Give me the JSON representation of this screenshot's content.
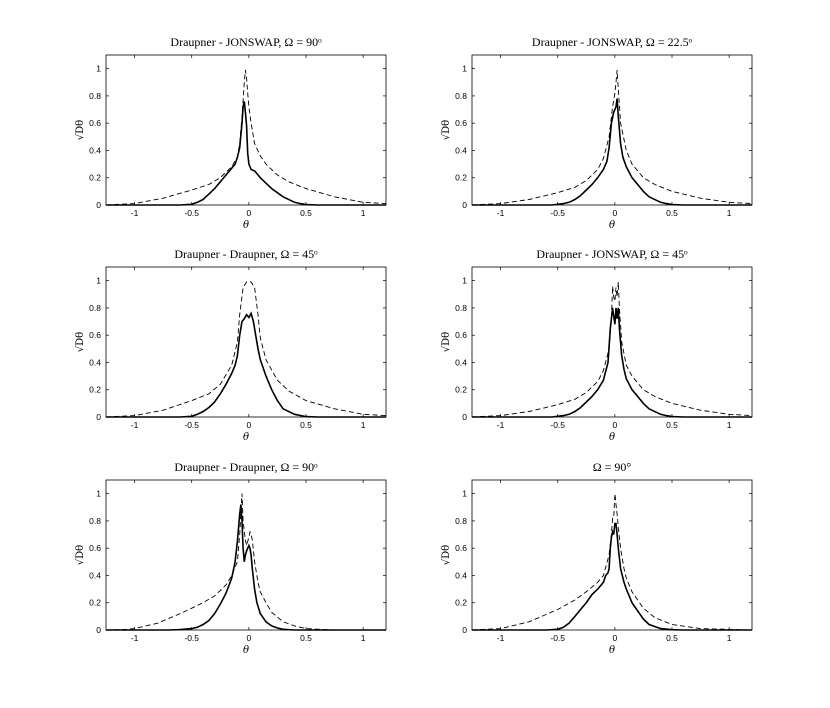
{
  "chart_data": [
    {
      "type": "line",
      "title": "Draupner - JONSWAP, Ω = 90ᵒ",
      "xlabel": "θ",
      "ylabel": "√Dθ",
      "xlim": [
        -1.25,
        1.2
      ],
      "ylim": [
        0,
        1.1
      ],
      "xticks": [
        "-1",
        "-0.5",
        "0",
        "0.5",
        "1"
      ],
      "yticks": [
        "0",
        "0.2",
        "0.4",
        "0.6",
        "0.8",
        "1"
      ],
      "series": [
        {
          "style": "solid",
          "x": [
            -1.25,
            -0.6,
            -0.5,
            -0.45,
            -0.4,
            -0.35,
            -0.3,
            -0.25,
            -0.2,
            -0.15,
            -0.12,
            -0.1,
            -0.08,
            -0.06,
            -0.05,
            -0.04,
            -0.03,
            -0.02,
            -0.01,
            0,
            0.02,
            0.05,
            0.1,
            0.15,
            0.2,
            0.3,
            0.4,
            0.45,
            0.5,
            0.6,
            1.2
          ],
          "y": [
            0,
            0,
            0.005,
            0.02,
            0.04,
            0.08,
            0.12,
            0.17,
            0.22,
            0.27,
            0.3,
            0.35,
            0.42,
            0.6,
            0.72,
            0.76,
            0.68,
            0.58,
            0.38,
            0.3,
            0.26,
            0.25,
            0.2,
            0.16,
            0.12,
            0.06,
            0.02,
            0.01,
            0.003,
            0,
            0
          ]
        },
        {
          "style": "dashed",
          "x": [
            -1.25,
            -1.0,
            -0.75,
            -0.5,
            -0.35,
            -0.25,
            -0.15,
            -0.1,
            -0.08,
            -0.06,
            -0.04,
            -0.03,
            -0.02,
            -0.01,
            0,
            0.02,
            0.05,
            0.1,
            0.15,
            0.25,
            0.35,
            0.5,
            0.75,
            1.0,
            1.2
          ],
          "y": [
            0,
            0.01,
            0.05,
            0.11,
            0.15,
            0.2,
            0.28,
            0.35,
            0.45,
            0.65,
            0.9,
            0.99,
            0.93,
            0.82,
            0.72,
            0.6,
            0.45,
            0.36,
            0.3,
            0.22,
            0.17,
            0.12,
            0.06,
            0.02,
            0.01
          ]
        }
      ]
    },
    {
      "type": "line",
      "title": "Draupner - JONSWAP, Ω = 22.5ᵒ",
      "xlabel": "θ",
      "ylabel": "√Dθ",
      "xlim": [
        -1.25,
        1.2
      ],
      "ylim": [
        0,
        1.1
      ],
      "xticks": [
        "-1",
        "-0.5",
        "0",
        "0.5",
        "1"
      ],
      "yticks": [
        "0",
        "0.2",
        "0.4",
        "0.6",
        "0.8",
        "1"
      ],
      "series": [
        {
          "style": "solid",
          "x": [
            -1.25,
            -0.55,
            -0.45,
            -0.4,
            -0.35,
            -0.3,
            -0.25,
            -0.2,
            -0.15,
            -0.1,
            -0.07,
            -0.05,
            -0.03,
            -0.01,
            0,
            0.01,
            0.02,
            0.03,
            0.05,
            0.07,
            0.1,
            0.15,
            0.2,
            0.25,
            0.3,
            0.4,
            0.45,
            0.5,
            0.6,
            1.2
          ],
          "y": [
            0,
            0,
            0.01,
            0.02,
            0.04,
            0.07,
            0.11,
            0.15,
            0.2,
            0.26,
            0.32,
            0.42,
            0.6,
            0.68,
            0.7,
            0.72,
            0.78,
            0.65,
            0.45,
            0.35,
            0.28,
            0.2,
            0.15,
            0.1,
            0.06,
            0.02,
            0.01,
            0.003,
            0,
            0
          ]
        },
        {
          "style": "dashed",
          "x": [
            -1.25,
            -1.0,
            -0.75,
            -0.5,
            -0.35,
            -0.25,
            -0.15,
            -0.1,
            -0.05,
            -0.02,
            0,
            0.01,
            0.02,
            0.03,
            0.05,
            0.1,
            0.15,
            0.25,
            0.35,
            0.5,
            0.75,
            1.0,
            1.2
          ],
          "y": [
            0,
            0.01,
            0.04,
            0.09,
            0.13,
            0.18,
            0.26,
            0.34,
            0.5,
            0.72,
            0.82,
            0.9,
            0.99,
            0.85,
            0.6,
            0.4,
            0.3,
            0.2,
            0.15,
            0.1,
            0.05,
            0.02,
            0.01
          ]
        }
      ]
    },
    {
      "type": "line",
      "title": "Draupner - Draupner, Ω = 45ᵒ",
      "xlabel": "θ",
      "ylabel": "√Dθ",
      "xlim": [
        -1.25,
        1.2
      ],
      "ylim": [
        0,
        1.1
      ],
      "xticks": [
        "-1",
        "-0.5",
        "0",
        "0.5",
        "1"
      ],
      "yticks": [
        "0",
        "0.2",
        "0.4",
        "0.6",
        "0.8",
        "1"
      ],
      "series": [
        {
          "style": "solid",
          "x": [
            -1.25,
            -0.6,
            -0.5,
            -0.45,
            -0.4,
            -0.35,
            -0.3,
            -0.25,
            -0.2,
            -0.15,
            -0.12,
            -0.1,
            -0.08,
            -0.06,
            -0.04,
            -0.02,
            0,
            0.02,
            0.04,
            0.06,
            0.08,
            0.1,
            0.15,
            0.2,
            0.25,
            0.3,
            0.4,
            0.5,
            0.6,
            1.2
          ],
          "y": [
            0,
            0,
            0.005,
            0.02,
            0.04,
            0.07,
            0.11,
            0.17,
            0.24,
            0.32,
            0.38,
            0.45,
            0.6,
            0.7,
            0.72,
            0.75,
            0.73,
            0.76,
            0.7,
            0.6,
            0.5,
            0.42,
            0.3,
            0.2,
            0.12,
            0.06,
            0.02,
            0.003,
            0,
            0
          ]
        },
        {
          "style": "dashed",
          "x": [
            -1.25,
            -1.0,
            -0.75,
            -0.5,
            -0.35,
            -0.25,
            -0.15,
            -0.1,
            -0.08,
            -0.05,
            -0.02,
            0,
            0.02,
            0.05,
            0.08,
            0.1,
            0.15,
            0.25,
            0.35,
            0.5,
            0.75,
            1.0,
            1.2
          ],
          "y": [
            0,
            0.01,
            0.05,
            0.12,
            0.17,
            0.24,
            0.38,
            0.55,
            0.75,
            0.95,
            0.99,
            0.99,
            0.99,
            0.95,
            0.75,
            0.58,
            0.42,
            0.27,
            0.19,
            0.12,
            0.06,
            0.02,
            0.01
          ]
        }
      ]
    },
    {
      "type": "line",
      "title": "Draupner - JONSWAP, Ω = 45ᵒ",
      "xlabel": "θ",
      "ylabel": "√Dθ",
      "xlim": [
        -1.25,
        1.2
      ],
      "ylim": [
        0,
        1.1
      ],
      "xticks": [
        "-1",
        "-0.5",
        "0",
        "0.5",
        "1"
      ],
      "yticks": [
        "0",
        "0.2",
        "0.4",
        "0.6",
        "0.8",
        "1"
      ],
      "series": [
        {
          "style": "solid",
          "x": [
            -1.25,
            -0.55,
            -0.45,
            -0.4,
            -0.35,
            -0.3,
            -0.25,
            -0.2,
            -0.15,
            -0.1,
            -0.06,
            -0.04,
            -0.02,
            -0.01,
            0,
            0.01,
            0.02,
            0.03,
            0.04,
            0.06,
            0.08,
            0.1,
            0.15,
            0.2,
            0.25,
            0.3,
            0.4,
            0.45,
            0.5,
            0.6,
            1.2
          ],
          "y": [
            0,
            0,
            0.01,
            0.02,
            0.04,
            0.07,
            0.11,
            0.15,
            0.2,
            0.27,
            0.4,
            0.65,
            0.8,
            0.74,
            0.68,
            0.8,
            0.72,
            0.8,
            0.65,
            0.45,
            0.35,
            0.28,
            0.2,
            0.15,
            0.1,
            0.06,
            0.02,
            0.01,
            0.003,
            0,
            0
          ]
        },
        {
          "style": "dashed",
          "x": [
            -1.25,
            -1.0,
            -0.75,
            -0.5,
            -0.35,
            -0.25,
            -0.15,
            -0.1,
            -0.05,
            -0.03,
            -0.02,
            -0.01,
            0,
            0.01,
            0.02,
            0.03,
            0.04,
            0.06,
            0.1,
            0.15,
            0.25,
            0.35,
            0.5,
            0.75,
            1.0,
            1.2
          ],
          "y": [
            0,
            0.01,
            0.04,
            0.09,
            0.13,
            0.18,
            0.26,
            0.34,
            0.5,
            0.72,
            0.96,
            0.88,
            0.85,
            0.95,
            0.88,
            0.99,
            0.8,
            0.55,
            0.38,
            0.3,
            0.2,
            0.15,
            0.1,
            0.05,
            0.02,
            0.01
          ]
        }
      ]
    },
    {
      "type": "line",
      "title": "Draupner - Draupner, Ω = 90ᵒ",
      "xlabel": "θ",
      "ylabel": "√Dθ",
      "xlim": [
        -1.25,
        1.2
      ],
      "ylim": [
        0,
        1.1
      ],
      "xticks": [
        "-1",
        "-0.5",
        "0",
        "0.5",
        "1"
      ],
      "yticks": [
        "0",
        "0.2",
        "0.4",
        "0.6",
        "0.8",
        "1"
      ],
      "series": [
        {
          "style": "solid",
          "x": [
            -1.25,
            -0.7,
            -0.6,
            -0.5,
            -0.45,
            -0.4,
            -0.35,
            -0.3,
            -0.25,
            -0.2,
            -0.15,
            -0.12,
            -0.1,
            -0.08,
            -0.07,
            -0.06,
            -0.05,
            -0.04,
            -0.03,
            -0.02,
            -0.01,
            0,
            0.01,
            0.02,
            0.03,
            0.05,
            0.07,
            0.1,
            0.15,
            0.2,
            0.25,
            0.3,
            0.4,
            0.5,
            1.2
          ],
          "y": [
            0,
            0,
            0.003,
            0.01,
            0.02,
            0.04,
            0.07,
            0.12,
            0.19,
            0.27,
            0.38,
            0.5,
            0.65,
            0.85,
            0.92,
            0.8,
            0.6,
            0.5,
            0.55,
            0.58,
            0.6,
            0.62,
            0.6,
            0.55,
            0.45,
            0.3,
            0.2,
            0.12,
            0.06,
            0.03,
            0.015,
            0.005,
            0,
            0,
            0
          ]
        },
        {
          "style": "dashed",
          "x": [
            -1.25,
            -1.1,
            -1.0,
            -0.8,
            -0.6,
            -0.5,
            -0.4,
            -0.3,
            -0.2,
            -0.15,
            -0.1,
            -0.08,
            -0.07,
            -0.06,
            -0.05,
            -0.04,
            -0.03,
            -0.02,
            0,
            0.01,
            0.02,
            0.03,
            0.05,
            0.08,
            0.1,
            0.15,
            0.2,
            0.3,
            0.4,
            0.5,
            0.75,
            1.2
          ],
          "y": [
            0,
            0.003,
            0.01,
            0.05,
            0.12,
            0.16,
            0.2,
            0.25,
            0.33,
            0.4,
            0.5,
            0.7,
            0.85,
            1.0,
            0.8,
            0.72,
            0.66,
            0.62,
            0.68,
            0.72,
            0.7,
            0.66,
            0.5,
            0.35,
            0.28,
            0.2,
            0.13,
            0.06,
            0.03,
            0.01,
            0,
            0
          ]
        }
      ]
    },
    {
      "type": "line",
      "title": "Ω = 90°",
      "xlabel": "θ",
      "ylabel": "√Dθ",
      "xlim": [
        -1.25,
        1.2
      ],
      "ylim": [
        0,
        1.1
      ],
      "xticks": [
        "-1",
        "-0.5",
        "0",
        "0.5",
        "1"
      ],
      "yticks": [
        "0",
        "0.2",
        "0.4",
        "0.6",
        "0.8",
        "1"
      ],
      "series": [
        {
          "style": "solid",
          "x": [
            -1.25,
            -0.6,
            -0.5,
            -0.45,
            -0.4,
            -0.35,
            -0.3,
            -0.25,
            -0.2,
            -0.15,
            -0.1,
            -0.08,
            -0.06,
            -0.05,
            -0.04,
            -0.03,
            -0.02,
            -0.01,
            0,
            0.01,
            0.02,
            0.03,
            0.05,
            0.08,
            0.1,
            0.15,
            0.2,
            0.25,
            0.3,
            0.4,
            0.5,
            0.6,
            1.2
          ],
          "y": [
            0,
            0,
            0.005,
            0.02,
            0.05,
            0.1,
            0.15,
            0.2,
            0.26,
            0.3,
            0.35,
            0.4,
            0.42,
            0.45,
            0.6,
            0.68,
            0.72,
            0.7,
            0.78,
            0.78,
            0.7,
            0.6,
            0.45,
            0.35,
            0.3,
            0.2,
            0.14,
            0.08,
            0.04,
            0.01,
            0.002,
            0,
            0
          ]
        },
        {
          "style": "dashed",
          "x": [
            -1.25,
            -1.0,
            -0.75,
            -0.5,
            -0.35,
            -0.25,
            -0.15,
            -0.1,
            -0.05,
            -0.03,
            -0.02,
            -0.01,
            0,
            0.01,
            0.02,
            0.03,
            0.05,
            0.08,
            0.1,
            0.15,
            0.25,
            0.35,
            0.5,
            0.75,
            1.2
          ],
          "y": [
            0,
            0.01,
            0.06,
            0.15,
            0.22,
            0.28,
            0.35,
            0.4,
            0.55,
            0.7,
            0.82,
            0.82,
            1.0,
            0.92,
            0.85,
            0.75,
            0.6,
            0.45,
            0.38,
            0.28,
            0.16,
            0.09,
            0.04,
            0.01,
            0
          ]
        }
      ]
    }
  ]
}
